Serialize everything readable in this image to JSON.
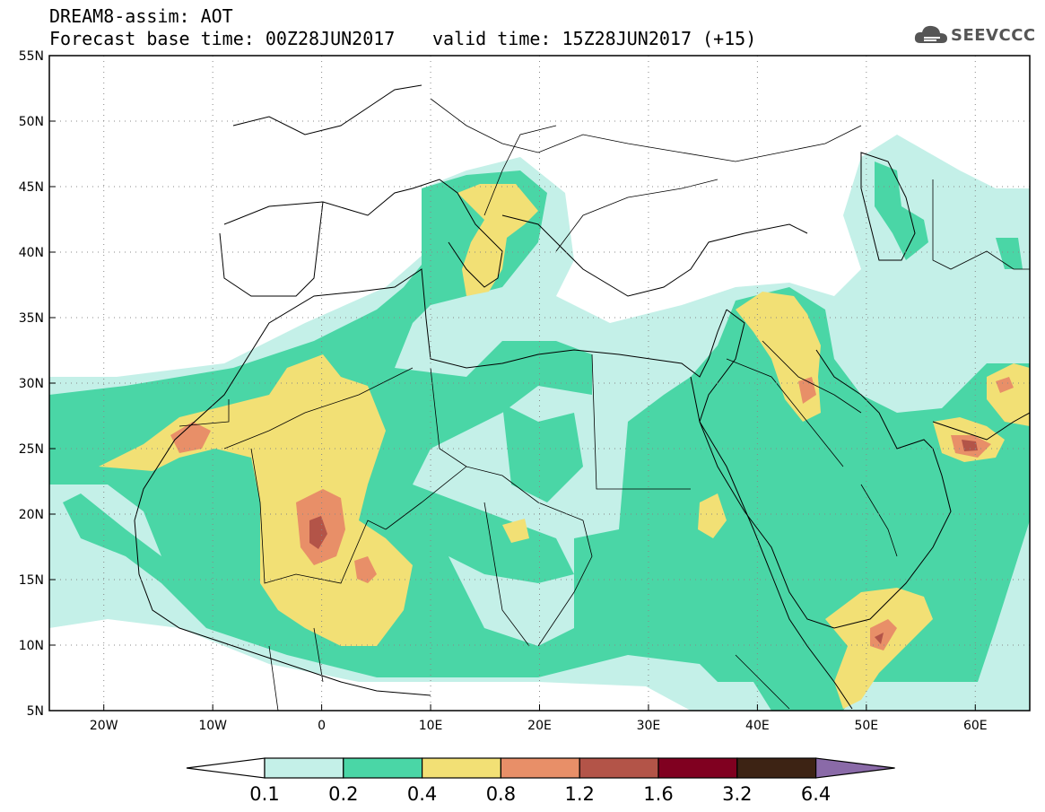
{
  "header": {
    "title": "DREAM8-assim: AOT",
    "base_time": "Forecast base time: 00Z28JUN2017",
    "valid_time": "valid time: 15Z28JUN2017 (+15)"
  },
  "logo": {
    "text": "SEEVCCC",
    "icon": "cloud-icon"
  },
  "map": {
    "lon_range": [
      -25,
      65
    ],
    "lat_range": [
      5,
      55
    ],
    "lat_ticks": [
      "55N",
      "50N",
      "45N",
      "40N",
      "35N",
      "30N",
      "25N",
      "20N",
      "15N",
      "10N",
      "5N"
    ],
    "lon_ticks": [
      "20W",
      "10W",
      "0",
      "10E",
      "20E",
      "30E",
      "40E",
      "50E",
      "60E"
    ]
  },
  "colorbar": {
    "labels": [
      "0.1",
      "0.2",
      "0.4",
      "0.8",
      "1.2",
      "1.6",
      "3.2",
      "6.4"
    ],
    "colors": [
      "#c4f0e8",
      "#4ad6a6",
      "#f2e075",
      "#e88f68",
      "#b35448",
      "#800020",
      "#3d2314",
      "#8a6aa8"
    ],
    "low_color": "#ffffff"
  },
  "fields": {
    "low_fill": "#c4f0e8",
    "mid_fill": "#4ad6a6",
    "high_fill": "#f2e075",
    "vhigh_fill": "#e88f68",
    "peak_fill": "#b35448",
    "land_line": "#000000"
  }
}
